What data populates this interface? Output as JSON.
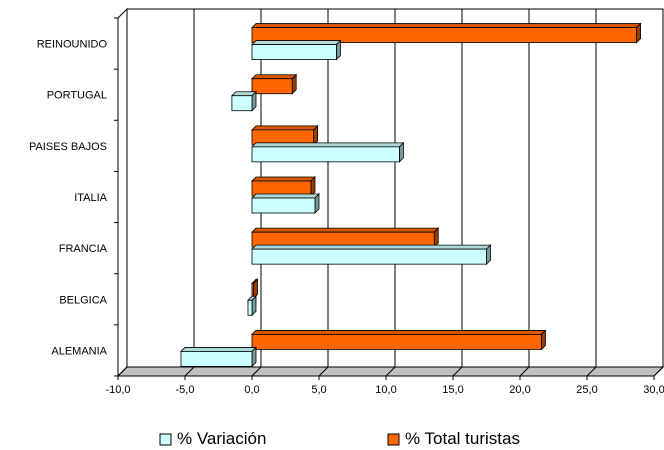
{
  "chart_data": {
    "type": "bar",
    "orientation": "horizontal",
    "categories": [
      "ALEMANIA",
      "BELGICA",
      "FRANCIA",
      "ITALIA",
      "PAISES BAJOS",
      "PORTUGAL",
      "REINO UNIDO"
    ],
    "category_labels": [
      "ALEMANIA",
      "BELGICA",
      "FRANCIA",
      "ITALIA",
      "PAISES BAJOS",
      "PORTUGAL",
      "REINOUNIDO"
    ],
    "series": [
      {
        "name": "% Variación",
        "color": "#ccffff",
        "values": [
          -5.3,
          -0.3,
          17.5,
          4.7,
          11.0,
          -1.5,
          6.3
        ]
      },
      {
        "name": "% Total turistas",
        "color": "#ff6600",
        "values": [
          21.6,
          0.0,
          13.6,
          4.4,
          4.6,
          3.0,
          28.7
        ]
      }
    ],
    "series_values_note": "",
    "xlim": [
      -10,
      30
    ],
    "x_ticks": [
      -10,
      -5,
      0,
      5,
      10,
      15,
      20,
      25,
      30
    ],
    "x_tick_labels": [
      "-10,0",
      "-5,0",
      "0,0",
      "5,0",
      "10,0",
      "15,0",
      "20,0",
      "25,0",
      "30,0"
    ],
    "grid": true,
    "legend_position": "bottom",
    "title": "",
    "xlabel": "",
    "ylabel": ""
  }
}
